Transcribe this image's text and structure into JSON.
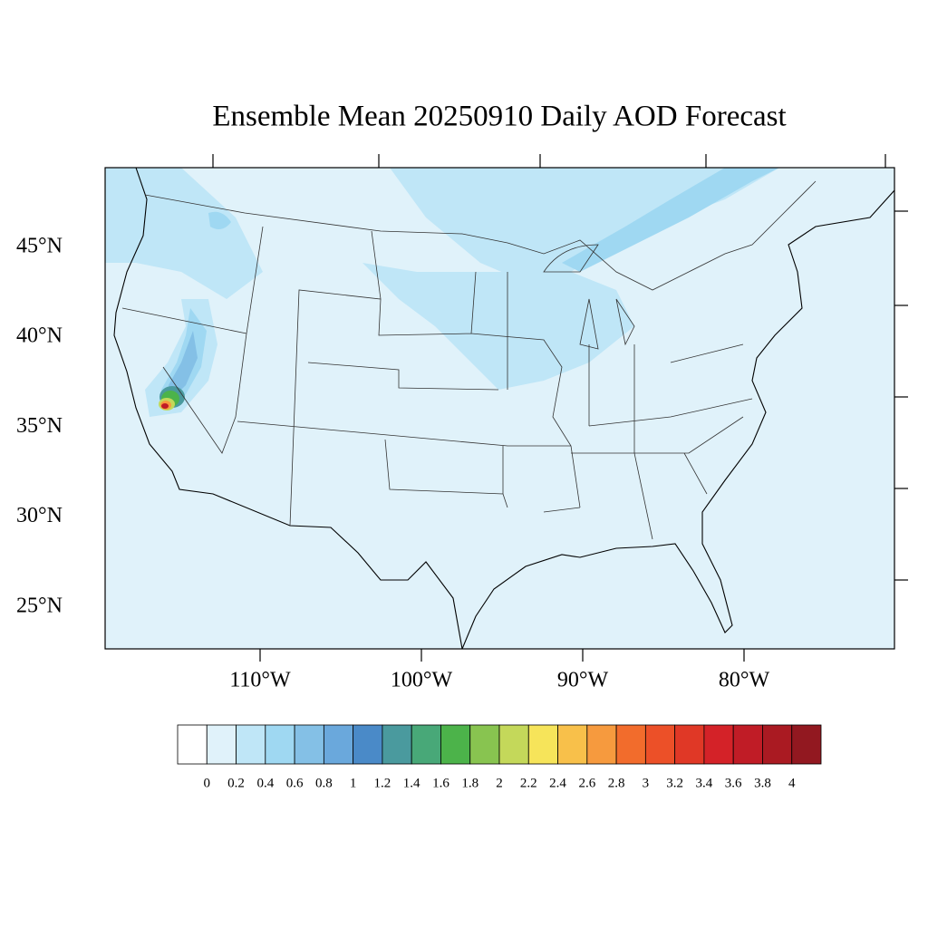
{
  "title": "Ensemble Mean 20250910 Daily AOD Forecast",
  "map": {
    "lat_labels": [
      "45°N",
      "40°N",
      "35°N",
      "30°N",
      "25°N"
    ],
    "lon_labels": [
      "110°W",
      "100°W",
      "90°W",
      "80°W"
    ]
  },
  "colorbar": {
    "labels": [
      0,
      0.2,
      0.4,
      0.6,
      0.8,
      1,
      1.2,
      1.4,
      1.6,
      1.8,
      2,
      2.2,
      2.4,
      2.6,
      2.8,
      3,
      3.2,
      3.4,
      3.6,
      3.8,
      4
    ],
    "colors": [
      "#ffffff",
      "#e0f2fa",
      "#bfe6f7",
      "#9fd8f2",
      "#84c0e6",
      "#6aa8dc",
      "#4a8ac8",
      "#4a9a9e",
      "#48a878",
      "#4cb34a",
      "#88c450",
      "#c4d85a",
      "#f6e45a",
      "#f8c04a",
      "#f69a3e",
      "#f26c2c",
      "#ec5028",
      "#e03826",
      "#d42228",
      "#c01c26",
      "#aa1a22",
      "#921820"
    ]
  }
}
